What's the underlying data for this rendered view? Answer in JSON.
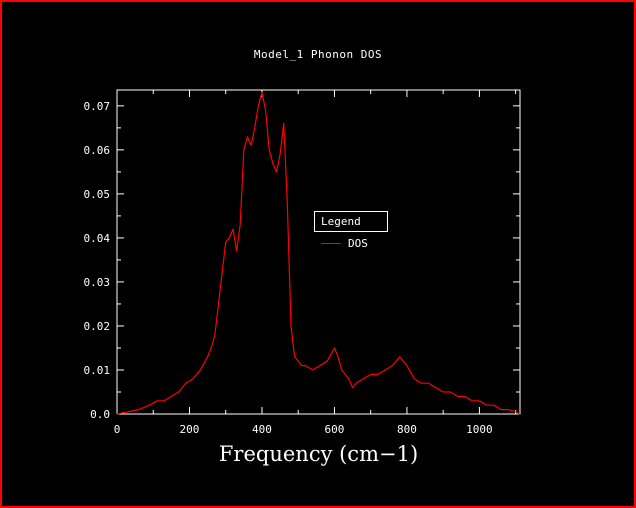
{
  "page": {
    "bg": "#000000",
    "fg": "#ffffff",
    "frame_color": "#ff0000"
  },
  "chart_data": {
    "type": "line",
    "title": "Model_1 Phonon DOS",
    "xlabel": "Frequency (cm−1)",
    "ylabel": "",
    "xlim": [
      0,
      1112
    ],
    "ylim": [
      0,
      0.0736
    ],
    "grid": false,
    "xticks": [
      0,
      200,
      400,
      600,
      800,
      1000
    ],
    "xtick_minor_step": 100,
    "yticks": [
      0.0,
      0.01,
      0.02,
      0.03,
      0.04,
      0.05,
      0.06,
      0.07
    ],
    "ytick_labels": [
      "0.0",
      "0.01",
      "0.02",
      "0.03",
      "0.04",
      "0.05",
      "0.06",
      "0.07"
    ],
    "ytick_minor_step": 0.005,
    "legend": {
      "title": "Legend",
      "position": "inside-center-right",
      "entries": [
        {
          "label": "DOS",
          "color": "#ff0000"
        }
      ]
    },
    "series": [
      {
        "name": "DOS",
        "color": "#ff0000",
        "x": [
          0,
          30,
          60,
          90,
          110,
          130,
          150,
          170,
          190,
          210,
          230,
          250,
          260,
          270,
          280,
          290,
          300,
          310,
          320,
          330,
          340,
          350,
          360,
          370,
          380,
          390,
          400,
          410,
          420,
          430,
          440,
          450,
          460,
          470,
          480,
          490,
          500,
          510,
          520,
          540,
          560,
          580,
          600,
          610,
          620,
          640,
          650,
          660,
          680,
          700,
          720,
          740,
          760,
          770,
          780,
          790,
          800,
          820,
          840,
          860,
          880,
          900,
          920,
          940,
          960,
          980,
          1000,
          1020,
          1040,
          1060,
          1080,
          1100,
          1110
        ],
        "y": [
          0,
          0.0005,
          0.001,
          0.002,
          0.003,
          0.003,
          0.004,
          0.005,
          0.007,
          0.008,
          0.01,
          0.013,
          0.015,
          0.018,
          0.025,
          0.032,
          0.039,
          0.04,
          0.042,
          0.037,
          0.043,
          0.06,
          0.063,
          0.061,
          0.065,
          0.07,
          0.073,
          0.069,
          0.06,
          0.057,
          0.055,
          0.059,
          0.066,
          0.048,
          0.02,
          0.013,
          0.012,
          0.011,
          0.011,
          0.01,
          0.011,
          0.012,
          0.015,
          0.013,
          0.01,
          0.008,
          0.006,
          0.007,
          0.008,
          0.009,
          0.009,
          0.01,
          0.011,
          0.012,
          0.013,
          0.012,
          0.011,
          0.008,
          0.007,
          0.007,
          0.006,
          0.005,
          0.005,
          0.004,
          0.004,
          0.003,
          0.003,
          0.002,
          0.002,
          0.001,
          0.001,
          0.0005,
          0
        ]
      }
    ]
  }
}
